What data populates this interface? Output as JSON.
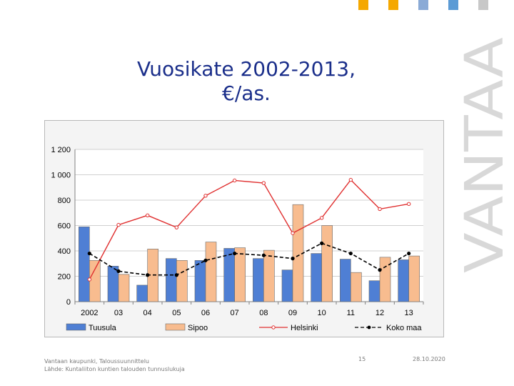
{
  "slide": {
    "title_line1": "Vuosikate 2002-2013,",
    "title_line2": "€/as.",
    "brand": "VANTAA",
    "accent_squares": [
      "#f5a800",
      "#f5a800",
      "#8aaad6",
      "#5b9bd5",
      "#c8c8c8"
    ],
    "footer_line1": "Vantaan kaupunki, Taloussuunnittelu",
    "footer_line2": "Lähde: Kuntaliiton kuntien talouden tunnuslukuja",
    "page_number": "15",
    "date": "28.10.2020"
  },
  "chart_data": {
    "type": "bar",
    "title": "",
    "xlabel": "",
    "ylabel": "",
    "ylim": [
      0,
      1200
    ],
    "yticks": [
      "0",
      "200",
      "400",
      "600",
      "800",
      "1 000",
      "1 200"
    ],
    "ytick_values": [
      0,
      200,
      400,
      600,
      800,
      1000,
      1200
    ],
    "categories": [
      "2002",
      "03",
      "04",
      "05",
      "06",
      "07",
      "08",
      "09",
      "10",
      "11",
      "12",
      "13"
    ],
    "grid": true,
    "legend_position": "bottom",
    "series": [
      {
        "name": "Tuusula",
        "type": "bar",
        "color": "#4f7fd4",
        "values": [
          590,
          280,
          130,
          340,
          325,
          420,
          340,
          250,
          380,
          335,
          165,
          330
        ]
      },
      {
        "name": "Sipoo",
        "type": "bar",
        "color": "#f8bc8f",
        "values": [
          325,
          215,
          415,
          325,
          470,
          425,
          405,
          765,
          600,
          230,
          350,
          360
        ]
      },
      {
        "name": "Helsinki",
        "type": "line",
        "color": "#e03030",
        "values": [
          175,
          605,
          680,
          585,
          835,
          955,
          935,
          540,
          660,
          960,
          730,
          770
        ]
      },
      {
        "name": "Koko maa",
        "type": "line",
        "color": "#000000",
        "values": [
          380,
          240,
          210,
          210,
          325,
          380,
          365,
          340,
          460,
          380,
          250,
          380
        ]
      }
    ]
  }
}
